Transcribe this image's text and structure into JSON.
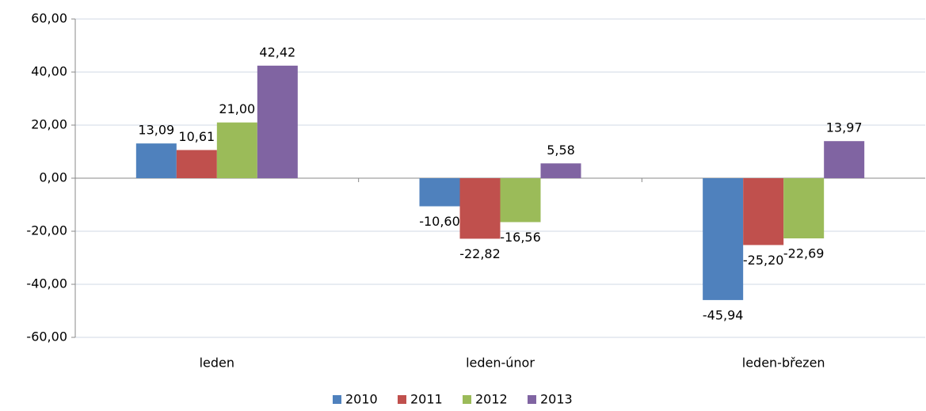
{
  "chart_data": {
    "type": "bar",
    "categories": [
      "leden",
      "leden-únor",
      "leden-březen"
    ],
    "series": [
      {
        "name": "2010",
        "color": "#4f81bd",
        "values": [
          13.09,
          -10.6,
          -45.94
        ],
        "value_labels": [
          "13,09",
          "-10,60",
          "-45,94"
        ]
      },
      {
        "name": "2011",
        "color": "#c0504d",
        "values": [
          10.61,
          -22.82,
          -25.2
        ],
        "value_labels": [
          "10,61",
          "-22,82",
          "-25,20"
        ]
      },
      {
        "name": "2012",
        "color": "#9bbb59",
        "values": [
          21.0,
          -16.56,
          -22.69
        ],
        "value_labels": [
          "21,00",
          "-16,56",
          "-22,69"
        ]
      },
      {
        "name": "2013",
        "color": "#8064a2",
        "values": [
          42.42,
          5.58,
          13.97
        ],
        "value_labels": [
          "42,42",
          "5,58",
          "13,97"
        ]
      }
    ],
    "ylim": [
      -60,
      60
    ],
    "yticks": [
      {
        "value": -60,
        "label": "-60,00"
      },
      {
        "value": -40,
        "label": "-40,00"
      },
      {
        "value": -20,
        "label": "-20,00"
      },
      {
        "value": 0,
        "label": "0,00"
      },
      {
        "value": 20,
        "label": "20,00"
      },
      {
        "value": 40,
        "label": "40,00"
      },
      {
        "value": 60,
        "label": "60,00"
      }
    ],
    "grid": true,
    "legend": "bottom"
  }
}
